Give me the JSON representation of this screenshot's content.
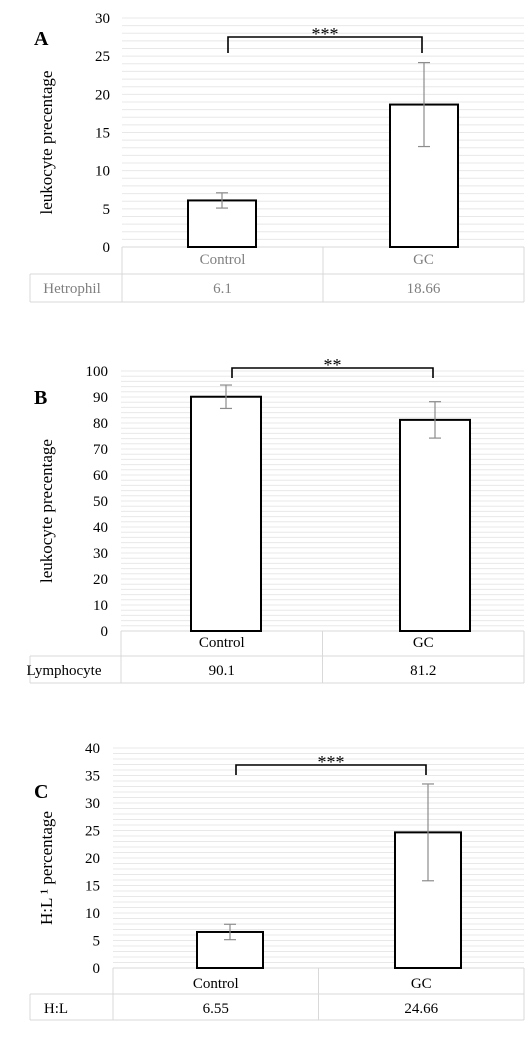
{
  "chart_data": [
    {
      "type": "bar",
      "panel": "A",
      "ylabel": "leukocyte precentage",
      "ylim": [
        0,
        30
      ],
      "ytick_step": 5,
      "grid": true,
      "categories": [
        "Control",
        "GC"
      ],
      "series": [
        {
          "name": "Hetrophil",
          "values": [
            6.1,
            18.66
          ],
          "errors": [
            1.0,
            5.5
          ]
        }
      ],
      "table_values": [
        "6.1",
        "18.66"
      ],
      "significance": "***",
      "style": "gray"
    },
    {
      "type": "bar",
      "panel": "B",
      "ylabel": "leukocyte precentage",
      "ylim": [
        0,
        100
      ],
      "ytick_step": 10,
      "grid": true,
      "categories": [
        "Control",
        "GC"
      ],
      "series": [
        {
          "name": "Lymphocyte",
          "values": [
            90.1,
            81.2
          ],
          "errors": [
            4.5,
            7.0
          ]
        }
      ],
      "table_values": [
        "90.1",
        "81.2"
      ],
      "significance": "**",
      "style": "black"
    },
    {
      "type": "bar",
      "panel": "C",
      "ylabel": "H:L ¹ percentage",
      "ylim": [
        0,
        40
      ],
      "ytick_step": 5,
      "grid": true,
      "categories": [
        "Control",
        "GC"
      ],
      "series": [
        {
          "name": "H:L",
          "values": [
            6.55,
            24.66
          ],
          "errors": [
            1.4,
            8.8
          ]
        }
      ],
      "table_values": [
        "6.55",
        "24.66"
      ],
      "significance": "***",
      "style": "black"
    }
  ],
  "colors": {
    "bar_fill": "#ffffff",
    "bar_stroke": "#000000",
    "error_bar": "#8c8c8c",
    "grid": "#e8e8e8",
    "table_border": "#d9d9d9",
    "gray_text": "#7f7f7f"
  }
}
